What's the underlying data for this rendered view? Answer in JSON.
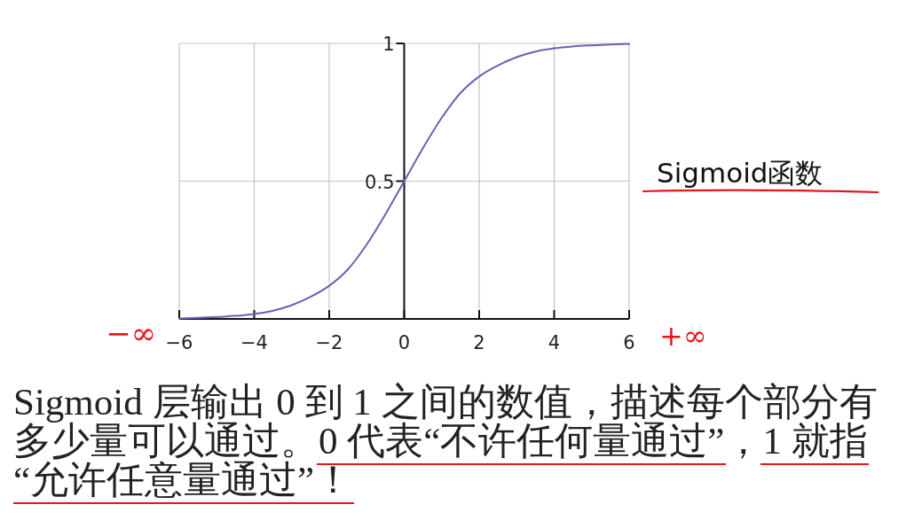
{
  "chart_data": {
    "type": "line",
    "title": "Sigmoid函数",
    "x": [
      -6,
      -5.5,
      -5,
      -4.5,
      -4,
      -3.5,
      -3,
      -2.5,
      -2,
      -1.5,
      -1,
      -0.5,
      0,
      0.5,
      1,
      1.5,
      2,
      2.5,
      3,
      3.5,
      4,
      4.5,
      5,
      5.5,
      6
    ],
    "series": [
      {
        "color": "#6464b4",
        "values": [
          0.002,
          0.004,
          0.007,
          0.011,
          0.018,
          0.03,
          0.05,
          0.08,
          0.12,
          0.18,
          0.27,
          0.38,
          0.5,
          0.62,
          0.73,
          0.82,
          0.88,
          0.92,
          0.95,
          0.97,
          0.982,
          0.989,
          0.993,
          0.996,
          0.998
        ]
      }
    ],
    "xlim": [
      -6,
      6
    ],
    "ylim": [
      0,
      1
    ],
    "xticks": [
      {
        "value": -6,
        "label": "−6"
      },
      {
        "value": -4,
        "label": "−4"
      },
      {
        "value": -2,
        "label": "−2"
      },
      0,
      2,
      4,
      6
    ],
    "yticks": [
      0.5,
      1
    ],
    "grid": true,
    "annotations": [
      "−∞",
      "+∞",
      "Sigmoid 层输出 0 到 1 之间的数值，描述每个部分有多少量可以通过。0 代表“不许任何量通过”，1 就指“允许任意量通过”！"
    ]
  }
}
